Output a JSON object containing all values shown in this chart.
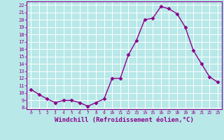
{
  "x": [
    0,
    1,
    2,
    3,
    4,
    5,
    6,
    7,
    8,
    9,
    10,
    11,
    12,
    13,
    14,
    15,
    16,
    17,
    18,
    19,
    20,
    21,
    22,
    23
  ],
  "y": [
    10.5,
    9.8,
    9.2,
    8.7,
    9.0,
    9.0,
    8.7,
    8.2,
    8.7,
    9.2,
    12.0,
    12.0,
    15.2,
    17.2,
    20.0,
    20.2,
    21.8,
    21.5,
    20.8,
    19.0,
    15.8,
    14.0,
    12.2,
    11.5
  ],
  "line_color": "#8b008b",
  "marker": "D",
  "markersize": 2.5,
  "linewidth": 1.0,
  "bg_color": "#b8e8e8",
  "grid_color": "#ffffff",
  "xlabel": "Windchill (Refroidissement éolien,°C)",
  "xlabel_color": "#8b008b",
  "yticks": [
    8,
    9,
    10,
    11,
    12,
    13,
    14,
    15,
    16,
    17,
    18,
    19,
    20,
    21,
    22
  ],
  "xticks": [
    0,
    1,
    2,
    3,
    4,
    5,
    6,
    7,
    8,
    9,
    10,
    11,
    12,
    13,
    14,
    15,
    16,
    17,
    18,
    19,
    20,
    21,
    22,
    23
  ],
  "ylim": [
    7.8,
    22.5
  ],
  "xlim": [
    -0.5,
    23.5
  ],
  "tick_color": "#8b008b",
  "tick_labelsize": 5.5,
  "xlabel_fontsize": 6.5,
  "spine_color": "#8b008b"
}
